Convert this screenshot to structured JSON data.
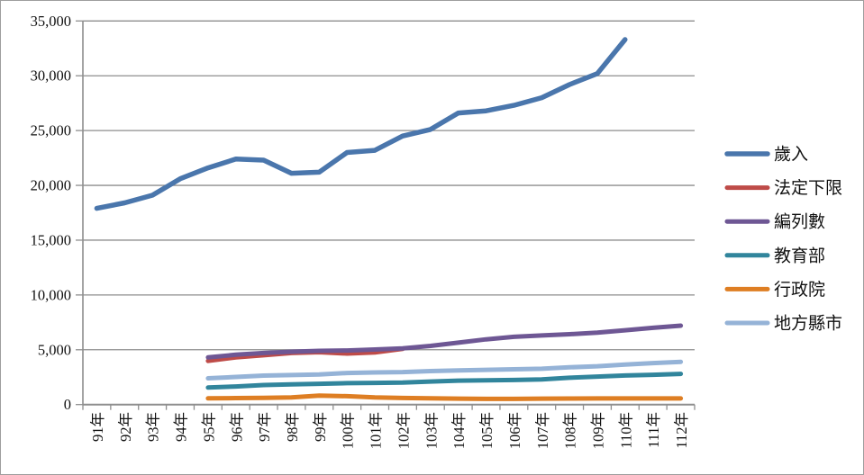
{
  "chart_data": {
    "type": "line",
    "title": "",
    "xlabel": "",
    "ylabel": "",
    "grid": true,
    "legend_position": "right",
    "grid_color": "#8E8E8E",
    "axis_color": "#8E8E8E",
    "text_color": "#111111",
    "categories": [
      "91年",
      "92年",
      "93年",
      "94年",
      "95年",
      "96年",
      "97年",
      "98年",
      "99年",
      "100年",
      "101年",
      "102年",
      "103年",
      "104年",
      "105年",
      "106年",
      "107年",
      "108年",
      "109年",
      "110年",
      "111年",
      "112年"
    ],
    "y_axis": {
      "min": 0,
      "max": 35000,
      "step": 5000,
      "tick_labels": [
        "0",
        "5,000",
        "10,000",
        "15,000",
        "20,000",
        "25,000",
        "30,000",
        "35,000"
      ]
    },
    "series": [
      {
        "name": "歲入",
        "key": "revenue",
        "color": "#4A76AC",
        "values": [
          17900,
          18400,
          19100,
          20600,
          21600,
          22400,
          22300,
          21100,
          21200,
          23000,
          23200,
          24500,
          25100,
          26600,
          26800,
          27300,
          28000,
          29200,
          30200,
          33300,
          null,
          null
        ]
      },
      {
        "name": "法定下限",
        "key": "statutory-floor",
        "color": "#BE4B48",
        "values": [
          null,
          null,
          null,
          null,
          3980,
          4300,
          4500,
          4700,
          4780,
          4650,
          4750,
          5080,
          null,
          null,
          null,
          null,
          null,
          null,
          null,
          null,
          null,
          null
        ]
      },
      {
        "name": "編列數",
        "key": "budgeted-amount",
        "color": "#6E5794",
        "values": [
          null,
          null,
          null,
          null,
          4300,
          4550,
          4700,
          4820,
          4900,
          4930,
          5020,
          5120,
          5350,
          5650,
          5950,
          6180,
          6300,
          6420,
          6570,
          6780,
          7000,
          7200
        ]
      },
      {
        "name": "教育部",
        "key": "ministry-of-education",
        "color": "#31859C",
        "values": [
          null,
          null,
          null,
          null,
          1550,
          1650,
          1780,
          1840,
          1900,
          1950,
          1980,
          2010,
          2100,
          2180,
          2210,
          2240,
          2300,
          2450,
          2550,
          2650,
          2720,
          2800
        ]
      },
      {
        "name": "行政院",
        "key": "executive-yuan",
        "color": "#DE7E23",
        "values": [
          null,
          null,
          null,
          null,
          570,
          590,
          610,
          650,
          820,
          760,
          650,
          600,
          570,
          540,
          520,
          520,
          540,
          550,
          560,
          560,
          560,
          560
        ]
      },
      {
        "name": "地方縣市",
        "key": "local-governments",
        "color": "#95B3D7",
        "values": [
          null,
          null,
          null,
          null,
          2400,
          2520,
          2640,
          2690,
          2740,
          2880,
          2930,
          2960,
          3050,
          3120,
          3170,
          3220,
          3270,
          3400,
          3500,
          3650,
          3780,
          3900
        ]
      }
    ]
  }
}
